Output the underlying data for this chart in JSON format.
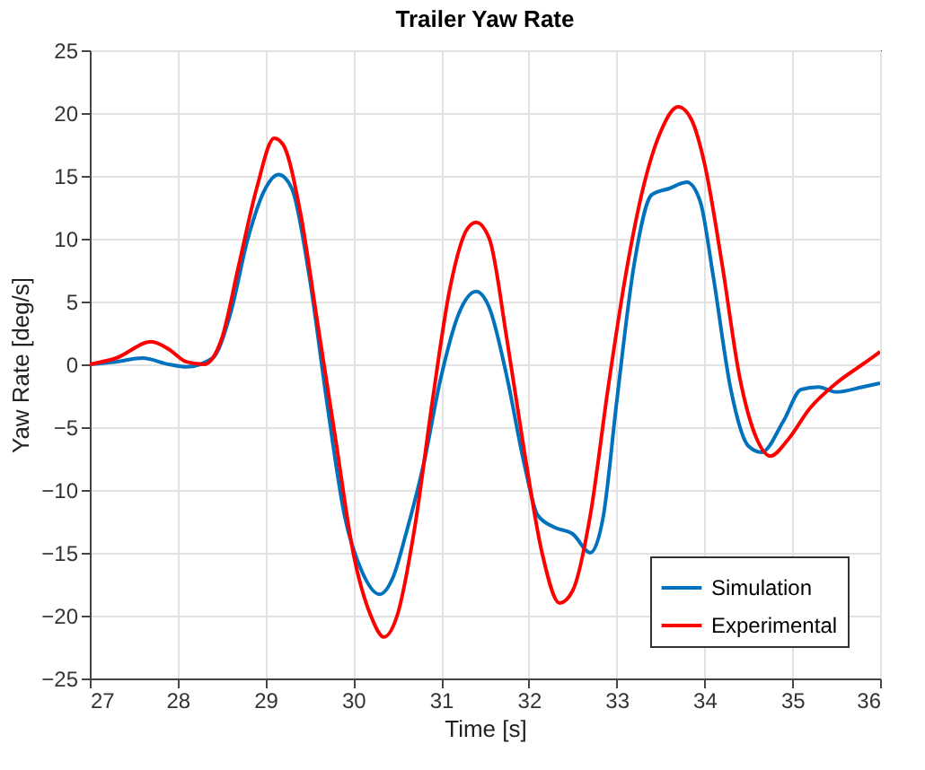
{
  "chart_data": {
    "type": "line",
    "title": "Trailer Yaw Rate",
    "xlabel": "Time [s]",
    "ylabel": "Yaw  Rate  [deg/s]",
    "xlim": [
      27,
      36
    ],
    "xticks": [
      27,
      28,
      29,
      30,
      31,
      32,
      33,
      34,
      35,
      36
    ],
    "ylim": [
      -25,
      25
    ],
    "yticks": [
      -25,
      -20,
      -15,
      -10,
      -5,
      0,
      5,
      10,
      15,
      20,
      25
    ],
    "grid": true,
    "legend": "bottom right",
    "line_style": "solid",
    "marker": "none",
    "series": [
      {
        "name": "Simulation",
        "color": "#0072bd",
        "x": [
          27,
          27.3,
          27.6,
          27.9,
          28.1,
          28.4,
          28.6,
          28.8,
          29,
          29.15,
          29.3,
          29.5,
          29.7,
          29.9,
          30.1,
          30.3,
          30.45,
          30.6,
          30.8,
          31,
          31.2,
          31.4,
          31.55,
          31.75,
          31.95,
          32.1,
          32.3,
          32.5,
          32.7,
          32.85,
          33,
          33.2,
          33.4,
          33.6,
          33.8,
          33.95,
          34.1,
          34.3,
          34.5,
          34.65,
          34.9,
          35.1,
          35.3,
          35.5,
          35.8,
          36
        ],
        "values": [
          0,
          0.2,
          0.5,
          0,
          -0.2,
          0.5,
          4,
          10,
          14,
          15.1,
          14,
          7,
          -3,
          -12,
          -16.5,
          -18.3,
          -17,
          -13.5,
          -8,
          -1,
          4,
          5.8,
          4.5,
          -1,
          -8,
          -12,
          -13,
          -13.5,
          -15,
          -12,
          -3,
          8,
          13.5,
          14,
          14.5,
          13,
          7,
          -2,
          -6.5,
          -7,
          -4.5,
          -2,
          -1.8,
          -2.2,
          -1.8,
          -1.5
        ]
      },
      {
        "name": "Experimental",
        "color": "#ff0000",
        "x": [
          27,
          27.3,
          27.7,
          27.9,
          28.1,
          28.3,
          28.5,
          28.7,
          28.9,
          29.1,
          29.2,
          29.4,
          29.6,
          29.8,
          30,
          30.2,
          30.35,
          30.5,
          30.7,
          30.9,
          31.1,
          31.3,
          31.4,
          31.55,
          31.75,
          31.95,
          32.15,
          32.35,
          32.5,
          32.7,
          32.9,
          33.1,
          33.3,
          33.5,
          33.7,
          33.85,
          34,
          34.2,
          34.4,
          34.6,
          34.75,
          34.95,
          35.2,
          35.5,
          35.8,
          36
        ],
        "values": [
          0,
          0.5,
          1.8,
          1.2,
          0.2,
          0,
          2,
          8,
          14,
          18,
          17.5,
          12,
          3,
          -6,
          -15,
          -20,
          -21.7,
          -20,
          -13,
          -3,
          6,
          10.8,
          11.3,
          10,
          2,
          -7,
          -15,
          -19,
          -18,
          -12,
          -2,
          7,
          14,
          18.5,
          20.5,
          19.5,
          16,
          8,
          -1,
          -6,
          -7.3,
          -6,
          -3.5,
          -1.5,
          0,
          1
        ]
      }
    ]
  }
}
